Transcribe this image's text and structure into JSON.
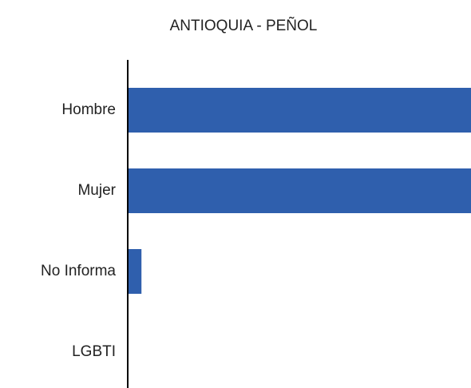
{
  "chart_data": {
    "type": "barh",
    "title": "ANTIOQUIA - PEÑOL",
    "categories": [
      "Hombre",
      "Mujer",
      "No Informa",
      "LGBTI"
    ],
    "values": [
      100,
      100,
      4,
      0
    ],
    "color": "#2f5fad",
    "xlim": [
      0,
      100
    ]
  }
}
